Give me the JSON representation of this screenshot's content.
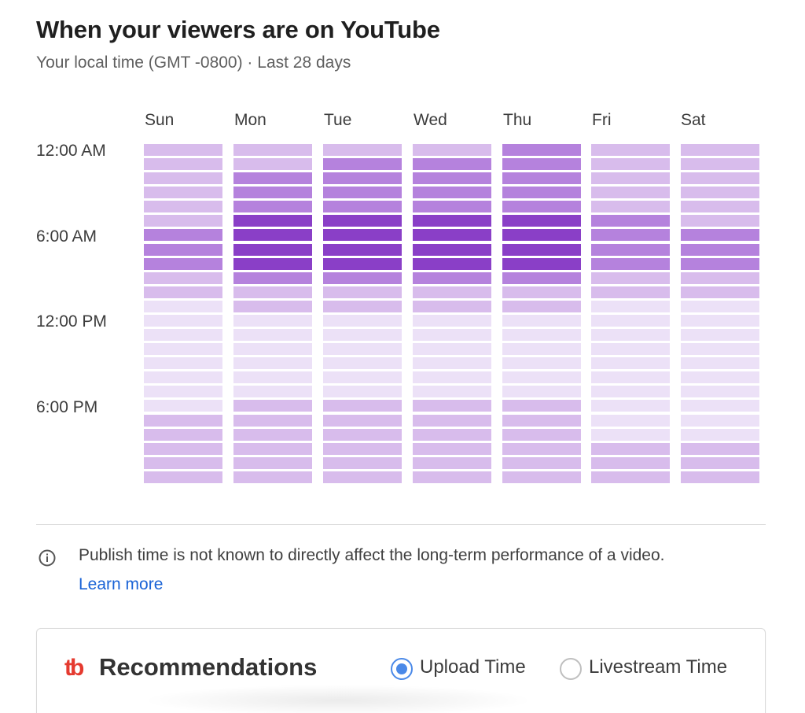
{
  "header": {
    "title": "When your viewers are on YouTube",
    "subtitle": "Your local time (GMT -0800) · Last 28 days"
  },
  "chart_data": {
    "type": "heatmap",
    "x_categories": [
      "Sun",
      "Mon",
      "Tue",
      "Wed",
      "Thu",
      "Fri",
      "Sat"
    ],
    "y_tick_labels": [
      "12:00 AM",
      "6:00 AM",
      "12:00 PM",
      "6:00 PM"
    ],
    "rows_per_day": 24,
    "level_colors": {
      "1": "#ece1f7",
      "2": "#d8bcec",
      "3": "#b582dd",
      "4": "#8a3fc7"
    },
    "values": [
      [
        2,
        2,
        2,
        2,
        2,
        2,
        3,
        3,
        3,
        2,
        2,
        1,
        1,
        1,
        1,
        1,
        1,
        1,
        1,
        2,
        2,
        2,
        2,
        2
      ],
      [
        2,
        2,
        3,
        3,
        3,
        4,
        4,
        4,
        4,
        3,
        2,
        2,
        1,
        1,
        1,
        1,
        1,
        1,
        2,
        2,
        2,
        2,
        2,
        2
      ],
      [
        2,
        3,
        3,
        3,
        3,
        4,
        4,
        4,
        4,
        3,
        2,
        2,
        1,
        1,
        1,
        1,
        1,
        1,
        2,
        2,
        2,
        2,
        2,
        2
      ],
      [
        2,
        3,
        3,
        3,
        3,
        4,
        4,
        4,
        4,
        3,
        2,
        2,
        1,
        1,
        1,
        1,
        1,
        1,
        2,
        2,
        2,
        2,
        2,
        2
      ],
      [
        3,
        3,
        3,
        3,
        3,
        4,
        4,
        4,
        4,
        3,
        2,
        2,
        1,
        1,
        1,
        1,
        1,
        1,
        2,
        2,
        2,
        2,
        2,
        2
      ],
      [
        2,
        2,
        2,
        2,
        2,
        3,
        3,
        3,
        3,
        2,
        2,
        1,
        1,
        1,
        1,
        1,
        1,
        1,
        1,
        1,
        1,
        2,
        2,
        2
      ],
      [
        2,
        2,
        2,
        2,
        2,
        2,
        3,
        3,
        3,
        2,
        2,
        1,
        1,
        1,
        1,
        1,
        1,
        1,
        1,
        1,
        1,
        2,
        2,
        2
      ]
    ]
  },
  "info": {
    "icon": "info-icon",
    "note": "Publish time is not known to directly affect the long-term performance of a video.",
    "link": "Learn more",
    "link_color": "#1a63d6"
  },
  "recommendations": {
    "logo_text": "tb",
    "logo_color": "#e53a2f",
    "title": "Recommendations",
    "options": [
      {
        "label": "Upload Time",
        "selected": true
      },
      {
        "label": "Livestream Time",
        "selected": false
      }
    ],
    "accent_color": "#4a89e8"
  }
}
